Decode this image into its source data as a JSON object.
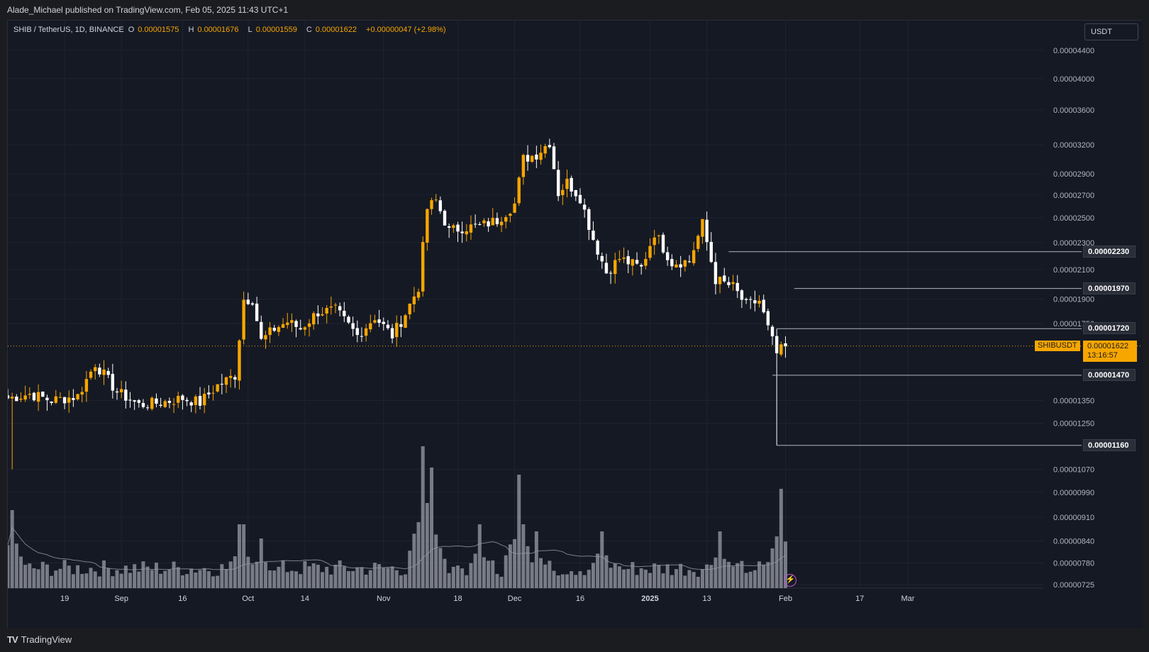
{
  "header": {
    "published": "Alade_Michael published on TradingView.com, Feb 05, 2025 11:43 UTC+1"
  },
  "legend": {
    "symbol": "SHIB / TetherUS, 1D, BINANCE",
    "o_label": "O",
    "o": "0.00001575",
    "h_label": "H",
    "h": "0.00001676",
    "l_label": "L",
    "l": "0.00001559",
    "c_label": "C",
    "c": "0.00001622",
    "change": "+0.00000047 (+2.98%)"
  },
  "currency": "USDT",
  "current": {
    "symbol": "SHIBUSDT",
    "price": "0.00001622",
    "countdown": "13:16:57"
  },
  "levels": [
    {
      "value": 2.23e-05,
      "label": "0.00002230"
    },
    {
      "value": 1.97e-05,
      "label": "0.00001970"
    },
    {
      "value": 1.72e-05,
      "label": "0.00001720"
    },
    {
      "value": 1.47e-05,
      "label": "0.00001470"
    },
    {
      "value": 1.16e-05,
      "label": "0.00001160"
    }
  ],
  "footer": {
    "logo_mark": "TV",
    "brand": "TradingView"
  },
  "colors": {
    "up": "#f7a600",
    "down": "#ffffff",
    "background": "#151924",
    "grid": "#1f2330",
    "volume": "#8a8d96",
    "volume_ma": "#9598a1"
  },
  "chart_data": {
    "type": "candlestick",
    "scale": "log",
    "ylim": [
      7.25e-06,
      4.6e-06
    ],
    "y_ticks": [
      {
        "v": 4.4e-05,
        "label": "0.00004400"
      },
      {
        "v": 4e-05,
        "label": "0.00004000"
      },
      {
        "v": 3.6e-05,
        "label": "0.00003600"
      },
      {
        "v": 3.2e-05,
        "label": "0.00003200"
      },
      {
        "v": 2.9e-05,
        "label": "0.00002900"
      },
      {
        "v": 2.7e-05,
        "label": "0.00002700"
      },
      {
        "v": 2.5e-05,
        "label": "0.00002500"
      },
      {
        "v": 2.3e-05,
        "label": "0.00002300"
      },
      {
        "v": 2.1e-05,
        "label": "0.00002100"
      },
      {
        "v": 1.9e-05,
        "label": "0.00001900"
      },
      {
        "v": 1.75e-05,
        "label": "0.00001750"
      },
      {
        "v": 1.35e-05,
        "label": "0.00001350"
      },
      {
        "v": 1.25e-05,
        "label": "0.00001250"
      },
      {
        "v": 1.07e-05,
        "label": "0.00001070"
      },
      {
        "v": 9.9e-06,
        "label": "0.00000990"
      },
      {
        "v": 9.1e-06,
        "label": "0.00000910"
      },
      {
        "v": 8.4e-06,
        "label": "0.00000840"
      },
      {
        "v": 7.8e-06,
        "label": "0.00000780"
      },
      {
        "v": 7.25e-06,
        "label": "0.00000725"
      }
    ],
    "x_ticks": [
      {
        "day": 13,
        "label": "19"
      },
      {
        "day": 26,
        "label": "Sep"
      },
      {
        "day": 40,
        "label": "16"
      },
      {
        "day": 55,
        "label": "Oct"
      },
      {
        "day": 68,
        "label": "14"
      },
      {
        "day": 86,
        "label": "Nov"
      },
      {
        "day": 103,
        "label": "18"
      },
      {
        "day": 116,
        "label": "Dec"
      },
      {
        "day": 131,
        "label": "16"
      },
      {
        "day": 147,
        "label": "2025"
      },
      {
        "day": 160,
        "label": "13"
      },
      {
        "day": 178,
        "label": "Feb"
      },
      {
        "day": 195,
        "label": "17"
      },
      {
        "day": 206,
        "label": "Mar"
      }
    ],
    "anchors": [
      {
        "day": 0,
        "price": 1.36e-05
      },
      {
        "day": 5,
        "price": 1.38e-05
      },
      {
        "day": 10,
        "price": 1.35e-05
      },
      {
        "day": 16,
        "price": 1.37e-05
      },
      {
        "day": 20,
        "price": 1.53e-05
      },
      {
        "day": 25,
        "price": 1.39e-05
      },
      {
        "day": 30,
        "price": 1.33e-05
      },
      {
        "day": 35,
        "price": 1.34e-05
      },
      {
        "day": 40,
        "price": 1.36e-05
      },
      {
        "day": 44,
        "price": 1.34e-05
      },
      {
        "day": 48,
        "price": 1.42e-05
      },
      {
        "day": 52,
        "price": 1.47e-05
      },
      {
        "day": 54,
        "price": 1.9e-05
      },
      {
        "day": 56,
        "price": 1.9e-05
      },
      {
        "day": 58,
        "price": 1.65e-05
      },
      {
        "day": 61,
        "price": 1.72e-05
      },
      {
        "day": 64,
        "price": 1.76e-05
      },
      {
        "day": 67,
        "price": 1.72e-05
      },
      {
        "day": 71,
        "price": 1.82e-05
      },
      {
        "day": 75,
        "price": 1.83e-05
      },
      {
        "day": 80,
        "price": 1.68e-05
      },
      {
        "day": 84,
        "price": 1.79e-05
      },
      {
        "day": 88,
        "price": 1.68e-05
      },
      {
        "day": 91,
        "price": 1.81e-05
      },
      {
        "day": 94,
        "price": 1.98e-05
      },
      {
        "day": 96,
        "price": 2.58e-05
      },
      {
        "day": 98,
        "price": 2.65e-05
      },
      {
        "day": 101,
        "price": 2.39e-05
      },
      {
        "day": 104,
        "price": 2.42e-05
      },
      {
        "day": 108,
        "price": 2.43e-05
      },
      {
        "day": 112,
        "price": 2.48e-05
      },
      {
        "day": 116,
        "price": 2.62e-05
      },
      {
        "day": 118,
        "price": 3.05e-05
      },
      {
        "day": 121,
        "price": 3.1e-05
      },
      {
        "day": 124,
        "price": 3.23e-05
      },
      {
        "day": 126,
        "price": 2.72e-05
      },
      {
        "day": 128,
        "price": 2.82e-05
      },
      {
        "day": 131,
        "price": 2.68e-05
      },
      {
        "day": 134,
        "price": 2.33e-05
      },
      {
        "day": 137,
        "price": 2.08e-05
      },
      {
        "day": 140,
        "price": 2.18e-05
      },
      {
        "day": 145,
        "price": 2.11e-05
      },
      {
        "day": 148,
        "price": 2.38e-05
      },
      {
        "day": 152,
        "price": 2.15e-05
      },
      {
        "day": 156,
        "price": 2.16e-05
      },
      {
        "day": 159,
        "price": 2.45e-05
      },
      {
        "day": 162,
        "price": 2.03e-05
      },
      {
        "day": 166,
        "price": 1.98e-05
      },
      {
        "day": 169,
        "price": 1.86e-05
      },
      {
        "day": 172,
        "price": 1.89e-05
      },
      {
        "day": 174,
        "price": 1.72e-05
      },
      {
        "day": 176,
        "price": 1.58e-05
      },
      {
        "day": 178,
        "price": 1.62e-05
      }
    ],
    "volume_peaks": [
      {
        "day": 1,
        "rel": 0.55
      },
      {
        "day": 53,
        "rel": 0.45
      },
      {
        "day": 54,
        "rel": 0.45
      },
      {
        "day": 58,
        "rel": 0.35
      },
      {
        "day": 95,
        "rel": 1.0
      },
      {
        "day": 96,
        "rel": 0.6
      },
      {
        "day": 97,
        "rel": 0.85
      },
      {
        "day": 108,
        "rel": 0.45
      },
      {
        "day": 117,
        "rel": 0.8
      },
      {
        "day": 118,
        "rel": 0.45
      },
      {
        "day": 121,
        "rel": 0.4
      },
      {
        "day": 136,
        "rel": 0.4
      },
      {
        "day": 163,
        "rel": 0.4
      },
      {
        "day": 177,
        "rel": 0.7
      }
    ]
  }
}
